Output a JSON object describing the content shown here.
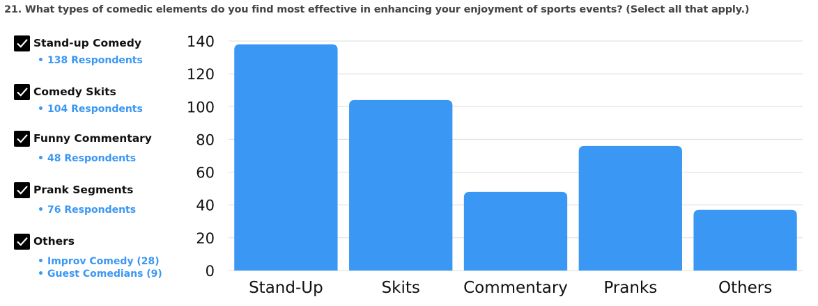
{
  "question": "21. What types of comedic elements do you find most effective in enhancing your enjoyment of sports events? (Select all that apply.)",
  "options": [
    {
      "label": "Stand-up Comedy",
      "checked": true,
      "details": [
        "138 Respondents"
      ]
    },
    {
      "label": "Comedy Skits",
      "checked": true,
      "details": [
        "104 Respondents"
      ]
    },
    {
      "label": "Funny Commentary",
      "checked": true,
      "details": [
        "48 Respondents"
      ]
    },
    {
      "label": "Prank Segments",
      "checked": true,
      "details": [
        "76 Respondents"
      ]
    },
    {
      "label": "Others",
      "checked": true,
      "details": [
        "Improv Comedy (28)",
        "Guest Comedians (9)"
      ]
    }
  ],
  "colors": {
    "bar": "#3a97f4",
    "accent_text": "#3a97f4",
    "grid": "#dddddd",
    "checkbox": "#000000"
  },
  "chart_data": {
    "type": "bar",
    "categories": [
      "Stand-Up",
      "Skits",
      "Commentary",
      "Pranks",
      "Others"
    ],
    "values": [
      138,
      104,
      48,
      76,
      37
    ],
    "ylim": [
      0,
      140
    ],
    "yticks": [
      "0",
      "20",
      "40",
      "60",
      "80",
      "100",
      "120",
      "140"
    ],
    "grid": true
  }
}
